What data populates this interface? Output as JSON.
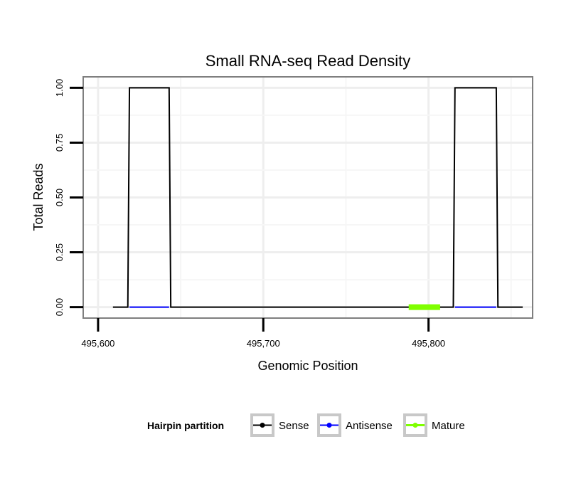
{
  "chart_data": {
    "type": "line",
    "title": "Small RNA-seq Read Density",
    "xlabel": "Genomic Position",
    "ylabel": "Total Reads",
    "xlim": [
      495591,
      495863
    ],
    "ylim": [
      -0.05,
      1.05
    ],
    "x_ticks": [
      495600,
      495700,
      495800
    ],
    "x_tick_labels": [
      "495,600",
      "495,700",
      "495,800"
    ],
    "y_ticks": [
      0,
      0.25,
      0.5,
      0.75,
      1.0
    ],
    "y_tick_labels": [
      "0.00",
      "0.25",
      "0.50",
      "0.75",
      "1.00"
    ],
    "grid": true,
    "legend": {
      "title": "Hairpin partition",
      "position": "bottom",
      "entries": [
        "Sense",
        "Antisense",
        "Mature"
      ]
    },
    "series": [
      {
        "name": "Sense",
        "color": "#000000",
        "x": [
          495609,
          495618,
          495619,
          495643,
          495644,
          495815,
          495816,
          495841,
          495842,
          495857
        ],
        "y": [
          0,
          0,
          1,
          1,
          0,
          0,
          1,
          1,
          0,
          0
        ]
      },
      {
        "name": "Antisense",
        "color": "#0000ff",
        "x": [
          495619,
          495643
        ],
        "y": [
          0,
          0
        ],
        "x2": [
          495816,
          495841
        ],
        "y2": [
          0,
          0
        ]
      },
      {
        "name": "Mature",
        "color": "#7fff00",
        "x": [
          495788,
          495807
        ],
        "y": [
          0,
          0
        ]
      }
    ]
  }
}
